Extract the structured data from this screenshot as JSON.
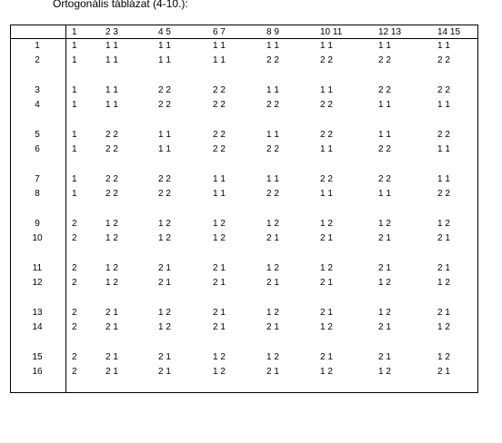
{
  "caption": "Ortogonális táblázat (4-10.):",
  "headers": [
    "1",
    "2 3",
    "4 5",
    "6 7",
    "8 9",
    "10 11",
    "12 13",
    "14 15"
  ],
  "rows": [
    {
      "num": "1",
      "cells": [
        "1",
        "1 1",
        "1 1",
        "1 1",
        "1 1",
        "1 1",
        "1 1",
        "1 1"
      ]
    },
    {
      "num": "2",
      "cells": [
        "1",
        "1 1",
        "1 1",
        "1 1",
        "2 2",
        "2 2",
        "2 2",
        "2 2"
      ]
    },
    {
      "num": "3",
      "cells": [
        "1",
        "1 1",
        "2 2",
        "2 2",
        "1 1",
        "1 1",
        "2 2",
        "2 2"
      ]
    },
    {
      "num": "4",
      "cells": [
        "1",
        "1 1",
        "2 2",
        "2 2",
        "2 2",
        "2 2",
        "1 1",
        "1 1"
      ]
    },
    {
      "num": "5",
      "cells": [
        "1",
        "2 2",
        "1 1",
        "2 2",
        "1 1",
        "2 2",
        "1 1",
        "2 2"
      ]
    },
    {
      "num": "6",
      "cells": [
        "1",
        "2 2",
        "1 1",
        "2 2",
        "2 2",
        "1 1",
        "2 2",
        "1 1"
      ]
    },
    {
      "num": "7",
      "cells": [
        "1",
        "2 2",
        "2 2",
        "1 1",
        "1 1",
        "2 2",
        "2 2",
        "1 1"
      ]
    },
    {
      "num": "8",
      "cells": [
        "1",
        "2 2",
        "2 2",
        "1 1",
        "2 2",
        "1 1",
        "1 1",
        "2 2"
      ]
    },
    {
      "num": "9",
      "cells": [
        "2",
        "1 2",
        "1 2",
        "1 2",
        "1 2",
        "1 2",
        "1 2",
        "1 2"
      ]
    },
    {
      "num": "10",
      "cells": [
        "2",
        "1 2",
        "1 2",
        "1 2",
        "2 1",
        "2 1",
        "2 1",
        "2 1"
      ]
    },
    {
      "num": "11",
      "cells": [
        "2",
        "1 2",
        "2 1",
        "2 1",
        "1 2",
        "1 2",
        "2 1",
        "2 1"
      ]
    },
    {
      "num": "12",
      "cells": [
        "2",
        "1 2",
        "2 1",
        "2 1",
        "2 1",
        "2 1",
        "1 2",
        "1 2"
      ]
    },
    {
      "num": "13",
      "cells": [
        "2",
        "2 1",
        "1 2",
        "2 1",
        "1 2",
        "2 1",
        "1 2",
        "2 1"
      ]
    },
    {
      "num": "14",
      "cells": [
        "2",
        "2 1",
        "1 2",
        "2 1",
        "2 1",
        "1 2",
        "2 1",
        "1 2"
      ]
    },
    {
      "num": "15",
      "cells": [
        "2",
        "2 1",
        "2 1",
        "1 2",
        "1 2",
        "2 1",
        "2 1",
        "1 2"
      ]
    },
    {
      "num": "16",
      "cells": [
        "2",
        "2 1",
        "2 1",
        "1 2",
        "2 1",
        "1 2",
        "1 2",
        "2 1"
      ]
    }
  ]
}
